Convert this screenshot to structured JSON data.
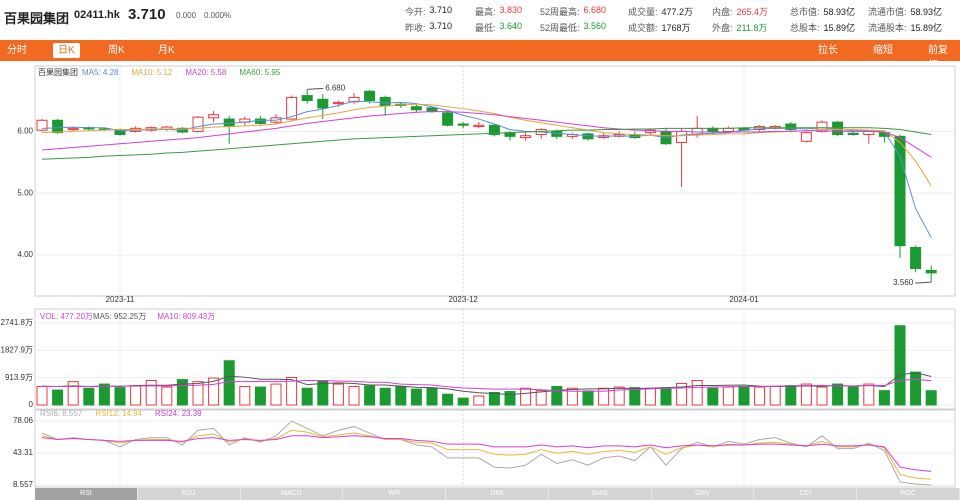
{
  "header": {
    "name": "百果园集团",
    "code": "02411.hk",
    "price": "3.710",
    "change": "0.000",
    "change_pct": "0.000%",
    "stats": [
      [
        {
          "label": "今开:",
          "value": "3.710"
        },
        {
          "label": "最高:",
          "value": "3.830",
          "color": "#e8383d"
        },
        {
          "label": "52周最高:",
          "value": "6.680",
          "color": "#e8383d"
        },
        {
          "label": "成交量:",
          "value": "477.2万"
        },
        {
          "label": "内盘:",
          "value": "265.4万",
          "color": "#e8383d"
        },
        {
          "label": "总市值:",
          "value": "58.93亿"
        },
        {
          "label": "流通市值:",
          "value": "58.93亿"
        }
      ],
      [
        {
          "label": "昨收:",
          "value": "3.710"
        },
        {
          "label": "最低:",
          "value": "3.640",
          "color": "#1a9a30"
        },
        {
          "label": "52周最低:",
          "value": "3.560",
          "color": "#1a9a30"
        },
        {
          "label": "成交额:",
          "value": "1768万"
        },
        {
          "label": "外盘:",
          "value": "211.8万",
          "color": "#1a9a30"
        },
        {
          "label": "总股本:",
          "value": "15.89亿"
        },
        {
          "label": "流通股本:",
          "value": "15.89亿"
        }
      ]
    ]
  },
  "toolbar": {
    "left": [
      "分时",
      "日K",
      "周K",
      "月K"
    ],
    "active": "日K",
    "right": [
      "拉长",
      "缩短",
      "前复权"
    ]
  },
  "price_chart": {
    "up_color": "#e8383d",
    "down_color": "#1a9a30",
    "categories": [
      null,
      null,
      null,
      null,
      null,
      "2023-11",
      null,
      null,
      null,
      null,
      null,
      null,
      null,
      null,
      null,
      null,
      null,
      null,
      null,
      null,
      null,
      null,
      null,
      null,
      null,
      null,
      null,
      "2023-12",
      null,
      null,
      null,
      null,
      null,
      null,
      null,
      null,
      null,
      null,
      null,
      null,
      null,
      null,
      null,
      null,
      null,
      "2024-01",
      null,
      null,
      null,
      null,
      null,
      null,
      null,
      null,
      null,
      null,
      null,
      null
    ],
    "open": [
      6.02,
      6.18,
      6.03,
      6.06,
      6.04,
      6.03,
      6.0,
      6.02,
      6.04,
      6.05,
      6.0,
      6.22,
      6.2,
      6.15,
      6.2,
      6.15,
      6.2,
      6.58,
      6.52,
      6.45,
      6.48,
      6.65,
      6.55,
      6.44,
      6.4,
      6.38,
      6.3,
      6.12,
      6.08,
      6.1,
      5.98,
      5.9,
      5.95,
      6.0,
      5.92,
      5.96,
      5.9,
      5.92,
      5.95,
      5.98,
      6.0,
      5.82,
      5.95,
      6.05,
      6.0,
      6.05,
      6.03,
      6.05,
      6.12,
      5.84,
      6.0,
      6.15,
      5.97,
      5.95,
      5.98,
      5.92,
      4.12,
      3.75
    ],
    "close": [
      6.18,
      5.98,
      6.05,
      6.04,
      6.03,
      5.95,
      6.05,
      6.06,
      6.07,
      5.99,
      6.23,
      6.27,
      6.08,
      6.2,
      6.13,
      6.22,
      6.55,
      6.5,
      6.38,
      6.47,
      6.55,
      6.5,
      6.42,
      6.42,
      6.35,
      6.33,
      6.1,
      6.1,
      6.1,
      5.95,
      5.92,
      5.93,
      6.03,
      5.92,
      5.95,
      5.88,
      5.93,
      5.95,
      5.9,
      6.02,
      5.8,
      6.0,
      6.05,
      6.0,
      6.05,
      6.02,
      6.08,
      6.08,
      6.03,
      5.98,
      6.15,
      5.95,
      5.95,
      6.0,
      5.92,
      4.15,
      3.78,
      3.71
    ],
    "high": [
      6.2,
      6.2,
      6.08,
      6.08,
      6.06,
      6.05,
      6.08,
      6.08,
      6.09,
      6.07,
      6.25,
      6.33,
      6.25,
      6.24,
      6.25,
      6.28,
      6.58,
      6.68,
      6.6,
      6.5,
      6.62,
      6.67,
      6.58,
      6.47,
      6.45,
      6.4,
      6.33,
      6.15,
      6.15,
      6.12,
      6.0,
      5.98,
      6.05,
      6.03,
      5.98,
      5.98,
      5.97,
      6.0,
      6.0,
      6.05,
      6.05,
      6.05,
      6.25,
      6.08,
      6.08,
      6.07,
      6.1,
      6.1,
      6.15,
      6.0,
      6.18,
      6.17,
      6.0,
      6.02,
      6.0,
      5.95,
      4.15,
      3.83
    ],
    "low": [
      6.0,
      5.96,
      6.0,
      6.02,
      6.01,
      5.93,
      5.98,
      6.0,
      6.01,
      5.97,
      5.98,
      6.15,
      5.8,
      6.1,
      6.1,
      6.12,
      6.18,
      6.45,
      6.2,
      6.4,
      6.45,
      6.45,
      6.25,
      6.38,
      6.3,
      6.3,
      6.08,
      6.05,
      6.05,
      5.92,
      5.85,
      5.85,
      5.88,
      5.88,
      5.88,
      5.85,
      5.88,
      5.9,
      5.88,
      5.95,
      5.78,
      5.1,
      5.9,
      5.95,
      5.98,
      6.0,
      6.0,
      6.03,
      6.0,
      5.82,
      5.98,
      5.92,
      5.93,
      5.8,
      5.82,
      3.95,
      3.72,
      3.56
    ],
    "ylim": [
      3.4,
      6.8
    ],
    "yticks": [
      {
        "value": 6,
        "label": "6.00"
      },
      {
        "value": 5,
        "label": "5.00"
      },
      {
        "value": 4,
        "label": "4.00"
      }
    ],
    "legend_name": "百果园集团",
    "ma": [
      {
        "label": "MA5: 4.28",
        "color": "#5b8fd8",
        "values": [
          6.05,
          6.06,
          6.07,
          6.06,
          6.06,
          6.01,
          6.02,
          6.03,
          6.03,
          6.02,
          6.08,
          6.12,
          6.13,
          6.15,
          6.18,
          6.18,
          6.24,
          6.32,
          6.36,
          6.42,
          6.49,
          6.48,
          6.46,
          6.47,
          6.45,
          6.4,
          6.34,
          6.26,
          6.2,
          6.12,
          6.03,
          6.0,
          5.99,
          5.97,
          5.95,
          5.93,
          5.92,
          5.93,
          5.92,
          5.94,
          5.9,
          5.94,
          5.96,
          5.97,
          5.98,
          6.02,
          6.04,
          6.05,
          6.05,
          6.04,
          6.06,
          6.04,
          6.01,
          6.01,
          5.99,
          5.6,
          4.75,
          4.28
        ]
      },
      {
        "label": "MA10: 5.12",
        "color": "#e9a53c",
        "values": [
          5.98,
          5.99,
          6.0,
          6.01,
          6.02,
          6.03,
          6.03,
          6.04,
          6.04,
          6.04,
          6.05,
          6.07,
          6.08,
          6.09,
          6.1,
          6.12,
          6.17,
          6.22,
          6.26,
          6.3,
          6.35,
          6.39,
          6.41,
          6.43,
          6.44,
          6.43,
          6.4,
          6.37,
          6.33,
          6.29,
          6.23,
          6.18,
          6.14,
          6.1,
          6.06,
          6.02,
          5.98,
          5.96,
          5.95,
          5.94,
          5.93,
          5.93,
          5.94,
          5.95,
          5.96,
          5.96,
          5.98,
          5.99,
          6.0,
          6.01,
          6.03,
          6.03,
          6.03,
          6.02,
          6.01,
          5.82,
          5.52,
          5.12
        ]
      },
      {
        "label": "MA20: 5.58",
        "color": "#d63fd6",
        "values": [
          5.7,
          5.72,
          5.74,
          5.76,
          5.78,
          5.8,
          5.82,
          5.84,
          5.86,
          5.88,
          5.9,
          5.93,
          5.96,
          5.99,
          6.02,
          6.05,
          6.09,
          6.13,
          6.16,
          6.19,
          6.22,
          6.25,
          6.27,
          6.29,
          6.31,
          6.32,
          6.32,
          6.31,
          6.29,
          6.27,
          6.24,
          6.21,
          6.18,
          6.15,
          6.12,
          6.09,
          6.06,
          6.04,
          6.02,
          6.01,
          6.0,
          6.0,
          5.99,
          5.99,
          5.99,
          5.99,
          5.99,
          6.0,
          6.0,
          6.01,
          6.01,
          6.0,
          6.0,
          6.0,
          5.99,
          5.9,
          5.74,
          5.58
        ]
      },
      {
        "label": "MA60: 5.95",
        "color": "#3f9a3f",
        "values": [
          5.55,
          5.56,
          5.57,
          5.58,
          5.6,
          5.61,
          5.62,
          5.63,
          5.65,
          5.66,
          5.68,
          5.7,
          5.72,
          5.74,
          5.76,
          5.78,
          5.8,
          5.82,
          5.84,
          5.86,
          5.88,
          5.89,
          5.9,
          5.91,
          5.92,
          5.93,
          5.94,
          5.95,
          5.96,
          5.97,
          5.98,
          5.99,
          6.0,
          6.01,
          6.02,
          6.02,
          6.03,
          6.03,
          6.04,
          6.04,
          6.05,
          6.05,
          6.05,
          6.05,
          6.05,
          6.06,
          6.06,
          6.06,
          6.06,
          6.06,
          6.06,
          6.06,
          6.06,
          6.06,
          6.05,
          6.03,
          5.99,
          5.95
        ]
      }
    ],
    "high_label": "6.680",
    "low_label": "3.560"
  },
  "volume_chart": {
    "values": [
      620,
      500,
      780,
      560,
      700,
      580,
      640,
      820,
      600,
      850,
      780,
      900,
      1480,
      620,
      600,
      700,
      920,
      560,
      820,
      700,
      620,
      640,
      560,
      620,
      530,
      560,
      360,
      230,
      300,
      420,
      450,
      560,
      480,
      620,
      560,
      470,
      560,
      600,
      580,
      560,
      580,
      720,
      820,
      560,
      600,
      620,
      600,
      620,
      650,
      700,
      600,
      700,
      600,
      700,
      480,
      2650,
      1100,
      477.2
    ],
    "ylim": [
      0,
      2741.8
    ],
    "yticks": [
      {
        "value": 2741.8,
        "label": "2741.8万"
      },
      {
        "value": 1827.9,
        "label": "1827.9万"
      },
      {
        "value": 913.9,
        "label": "913.9万"
      },
      0
    ],
    "legend_name": {
      "label": "VOL: 477.20万",
      "color": "#d63fd6"
    },
    "ma": [
      {
        "label": "MA5: 952.25万",
        "color": "#555555",
        "values": [
          630,
          620,
          640,
          620,
          630,
          620,
          650,
          660,
          660,
          700,
          720,
          790,
          960,
          930,
          860,
          860,
          850,
          680,
          720,
          740,
          720,
          670,
          670,
          630,
          590,
          580,
          540,
          460,
          410,
          380,
          350,
          390,
          440,
          490,
          520,
          540,
          540,
          560,
          550,
          560,
          580,
          600,
          650,
          650,
          660,
          670,
          630,
          620,
          620,
          640,
          630,
          650,
          630,
          650,
          620,
          1010,
          1080,
          952.25
        ]
      },
      {
        "label": "MA10: 809.43万",
        "color": "#d63fd6",
        "values": [
          620,
          620,
          620,
          620,
          630,
          630,
          630,
          640,
          640,
          650,
          660,
          690,
          780,
          780,
          790,
          780,
          800,
          820,
          820,
          800,
          790,
          760,
          760,
          700,
          680,
          670,
          610,
          570,
          550,
          530,
          530,
          530,
          510,
          480,
          460,
          460,
          460,
          500,
          520,
          540,
          560,
          570,
          590,
          600,
          610,
          620,
          610,
          630,
          640,
          650,
          650,
          640,
          640,
          650,
          650,
          820,
          860,
          809.43
        ]
      }
    ]
  },
  "rsi_chart": {
    "ylim": [
      8.557,
      78.06
    ],
    "yticks": [
      78.06,
      43.31,
      8.557
    ],
    "series": [
      {
        "label": "RSI6: 8.557",
        "color": "#aaaaaa",
        "values": [
          65,
          58,
          60,
          58,
          57,
          50,
          58,
          60,
          60,
          52,
          68,
          70,
          52,
          60,
          55,
          62,
          78,
          70,
          62,
          68,
          72,
          65,
          58,
          58,
          52,
          50,
          38,
          38,
          38,
          28,
          27,
          30,
          42,
          32,
          36,
          30,
          38,
          40,
          35,
          50,
          30,
          48,
          55,
          50,
          56,
          53,
          58,
          60,
          54,
          50,
          62,
          48,
          48,
          54,
          46,
          12,
          9.5,
          8.557
        ]
      },
      {
        "label": "RSI12: 14.94",
        "color": "#e9b83c",
        "values": [
          62,
          58,
          59,
          58,
          57,
          54,
          57,
          58,
          58,
          55,
          62,
          64,
          55,
          59,
          56,
          59,
          68,
          66,
          61,
          63,
          65,
          62,
          58,
          58,
          55,
          54,
          47,
          47,
          47,
          42,
          41,
          42,
          47,
          43,
          45,
          42,
          45,
          46,
          44,
          50,
          42,
          49,
          52,
          50,
          53,
          52,
          54,
          55,
          53,
          51,
          56,
          50,
          50,
          53,
          49,
          20,
          16,
          14.94
        ]
      },
      {
        "label": "RSI24: 23.39",
        "color": "#d63fd6",
        "values": [
          60,
          58,
          59,
          58,
          57,
          56,
          57,
          57,
          57,
          56,
          59,
          60,
          57,
          58,
          57,
          58,
          62,
          62,
          60,
          61,
          62,
          61,
          59,
          59,
          57,
          56,
          53,
          53,
          53,
          50,
          50,
          50,
          52,
          50,
          51,
          49,
          51,
          51,
          50,
          52,
          49,
          51,
          52,
          51,
          52,
          52,
          53,
          53,
          52,
          51,
          53,
          51,
          51,
          52,
          50,
          28,
          25,
          23.39
        ]
      }
    ]
  },
  "indicator_tabs": {
    "items": [
      "RSI",
      "KDJ",
      "MACD",
      "WR",
      "DMI",
      "BIAS",
      "OBV",
      "CCI",
      "ROC"
    ],
    "active": "RSI"
  }
}
